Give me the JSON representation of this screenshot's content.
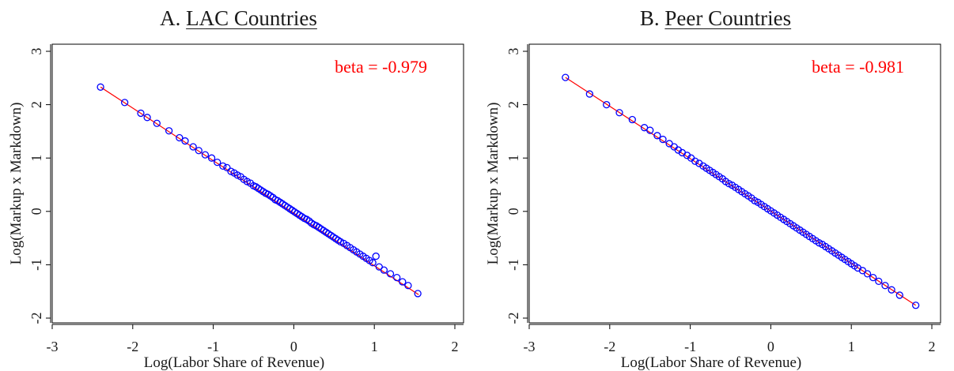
{
  "chart_data": [
    {
      "type": "scatter",
      "panel_letter": "A.",
      "title": "LAC Countries",
      "xlabel": "Log(Labor Share of Revenue)",
      "ylabel": "Log(Markup x Markdown)",
      "xlim": [
        -3,
        2
      ],
      "ylim": [
        -2,
        3
      ],
      "xticks": [
        "-3",
        "-2",
        "-1",
        "0",
        "1",
        "2"
      ],
      "yticks": [
        "-2",
        "-1",
        "0",
        "1",
        "2",
        "3"
      ],
      "annotation": "beta = -0.979",
      "fit_line": {
        "x": [
          -2.4,
          1.55
        ],
        "y": [
          2.33,
          -1.56
        ],
        "color": "#ff0000"
      },
      "marker_color": "#0000ff",
      "series": [
        {
          "x": [
            -2.4,
            -2.1,
            -1.9,
            -1.82,
            -1.7,
            -1.55,
            -1.42,
            -1.35,
            -1.25,
            -1.18,
            -1.1,
            -1.02,
            -0.95,
            -0.88,
            -0.83,
            -0.78,
            -0.74,
            -0.7,
            -0.66,
            -0.62,
            -0.58,
            -0.54,
            -0.5,
            -0.47,
            -0.44,
            -0.41,
            -0.38,
            -0.35,
            -0.32,
            -0.29,
            -0.26,
            -0.23,
            -0.2,
            -0.17,
            -0.14,
            -0.11,
            -0.08,
            -0.05,
            -0.02,
            0.01,
            0.04,
            0.07,
            0.1,
            0.13,
            0.16,
            0.19,
            0.22,
            0.25,
            0.28,
            0.31,
            0.34,
            0.37,
            0.4,
            0.43,
            0.46,
            0.49,
            0.52,
            0.55,
            0.58,
            0.62,
            0.66,
            0.7,
            0.74,
            0.78,
            0.82,
            0.86,
            0.9,
            0.94,
            0.98,
            1.02,
            1.06,
            1.12,
            1.2,
            1.28,
            1.35,
            1.42,
            1.54
          ],
          "y": [
            2.33,
            2.04,
            1.84,
            1.76,
            1.65,
            1.51,
            1.38,
            1.32,
            1.21,
            1.14,
            1.06,
            1.0,
            0.92,
            0.85,
            0.82,
            0.75,
            0.72,
            0.68,
            0.65,
            0.6,
            0.56,
            0.53,
            0.48,
            0.46,
            0.43,
            0.4,
            0.37,
            0.34,
            0.32,
            0.29,
            0.26,
            0.22,
            0.2,
            0.17,
            0.14,
            0.11,
            0.08,
            0.05,
            0.02,
            -0.01,
            -0.04,
            -0.07,
            -0.1,
            -0.13,
            -0.15,
            -0.18,
            -0.22,
            -0.25,
            -0.27,
            -0.3,
            -0.33,
            -0.36,
            -0.39,
            -0.42,
            -0.45,
            -0.48,
            -0.51,
            -0.54,
            -0.57,
            -0.6,
            -0.64,
            -0.68,
            -0.72,
            -0.76,
            -0.8,
            -0.84,
            -0.88,
            -0.92,
            -0.96,
            -0.84,
            -1.04,
            -1.1,
            -1.17,
            -1.24,
            -1.32,
            -1.39,
            -1.54
          ]
        }
      ]
    },
    {
      "type": "scatter",
      "panel_letter": "B.",
      "title": "Peer Countries",
      "xlabel": "Log(Labor Share of Revenue)",
      "ylabel": "Log(Markup x Markdown)",
      "xlim": [
        -3,
        2
      ],
      "ylim": [
        -2,
        3
      ],
      "xticks": [
        "-3",
        "-2",
        "-1",
        "0",
        "1",
        "2"
      ],
      "yticks": [
        "-2",
        "-1",
        "0",
        "1",
        "2",
        "3"
      ],
      "annotation": "beta = -0.981",
      "fit_line": {
        "x": [
          -2.55,
          1.8
        ],
        "y": [
          2.51,
          -1.76
        ],
        "color": "#ff0000"
      },
      "marker_color": "#0000ff",
      "series": [
        {
          "x": [
            -2.55,
            -2.25,
            -2.04,
            -1.88,
            -1.72,
            -1.57,
            -1.5,
            -1.41,
            -1.34,
            -1.26,
            -1.2,
            -1.15,
            -1.1,
            -1.04,
            -0.99,
            -0.94,
            -0.89,
            -0.84,
            -0.8,
            -0.76,
            -0.72,
            -0.68,
            -0.64,
            -0.6,
            -0.56,
            -0.52,
            -0.48,
            -0.44,
            -0.4,
            -0.36,
            -0.32,
            -0.28,
            -0.24,
            -0.2,
            -0.16,
            -0.12,
            -0.08,
            -0.04,
            0.0,
            0.04,
            0.08,
            0.12,
            0.16,
            0.2,
            0.24,
            0.28,
            0.32,
            0.36,
            0.4,
            0.44,
            0.48,
            0.52,
            0.56,
            0.6,
            0.64,
            0.68,
            0.72,
            0.76,
            0.8,
            0.84,
            0.88,
            0.92,
            0.96,
            1.0,
            1.04,
            1.08,
            1.14,
            1.2,
            1.27,
            1.34,
            1.42,
            1.5,
            1.6,
            1.8
          ],
          "y": [
            2.51,
            2.2,
            2.0,
            1.85,
            1.72,
            1.57,
            1.52,
            1.42,
            1.35,
            1.27,
            1.21,
            1.15,
            1.1,
            1.05,
            1.0,
            0.94,
            0.9,
            0.85,
            0.81,
            0.77,
            0.73,
            0.69,
            0.65,
            0.61,
            0.56,
            0.52,
            0.49,
            0.45,
            0.41,
            0.37,
            0.33,
            0.29,
            0.25,
            0.2,
            0.17,
            0.13,
            0.09,
            0.05,
            0.01,
            -0.03,
            -0.07,
            -0.11,
            -0.15,
            -0.19,
            -0.23,
            -0.27,
            -0.31,
            -0.35,
            -0.39,
            -0.43,
            -0.47,
            -0.51,
            -0.55,
            -0.59,
            -0.62,
            -0.66,
            -0.7,
            -0.74,
            -0.78,
            -0.82,
            -0.86,
            -0.9,
            -0.94,
            -0.98,
            -1.02,
            -1.06,
            -1.11,
            -1.17,
            -1.24,
            -1.31,
            -1.39,
            -1.47,
            -1.57,
            -1.76
          ]
        }
      ]
    }
  ]
}
